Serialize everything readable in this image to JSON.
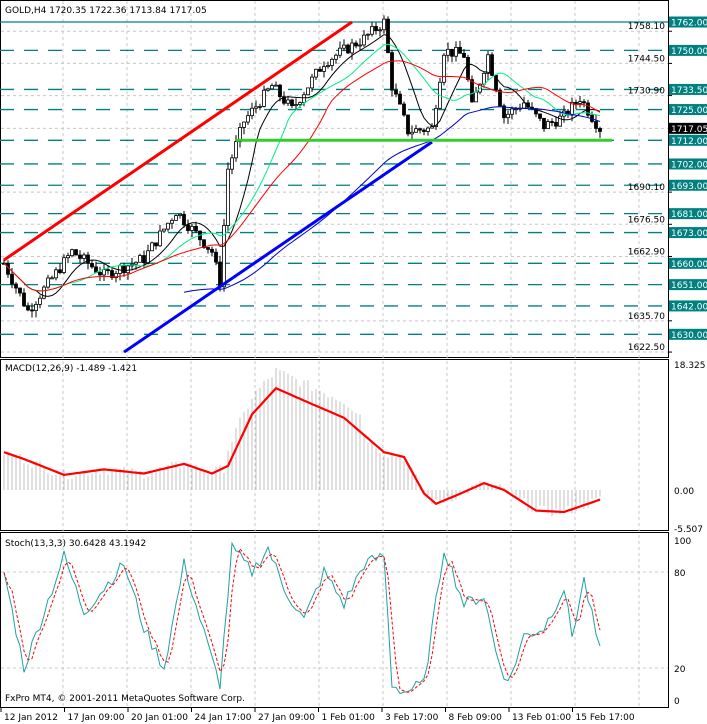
{
  "header": {
    "symbol": "GOLD,H4",
    "ohlc": "1720.35 1722.36 1713.84 1717.05"
  },
  "footer": {
    "copyright": "FxPro MT4, © 2001-2011 MetaQuotes Software Corp."
  },
  "colors": {
    "up": "#000000",
    "bg": "#ffffff",
    "level": "#008080",
    "trend_up": "#ff0000",
    "trend_support": "#0000ff",
    "support": "#33cc33",
    "ma_fast": "#000000",
    "ma_mid": "#00ee88",
    "ma_slow": "#ff0000",
    "ma_long": "#0000cc",
    "macd": "#ff0000",
    "hist": "#c0c0c0",
    "stoch_main": "#20a0a0",
    "stoch_signal": "#ff0000"
  },
  "chart_data": [
    {
      "type": "candlestick",
      "title": "GOLD,H4",
      "ylim": [
        1622.5,
        1762
      ],
      "price_ticks": [
        "1758.10",
        "1744.50",
        "1730.90",
        "1690.10",
        "1676.50",
        "1662.90",
        "1635.70",
        "1622.50"
      ],
      "current_price": "1717.05",
      "levels": [
        "1762.00",
        "1750.00",
        "1733.50",
        "1725.00",
        "1712.00",
        "1702.00",
        "1693.00",
        "1681.00",
        "1673.00",
        "1660.00",
        "1651.00",
        "1642.00",
        "1630.00"
      ],
      "close_path": [
        [
          0,
          1660
        ],
        [
          6,
          1640
        ],
        [
          17,
          1665
        ],
        [
          25,
          1655
        ],
        [
          35,
          1662
        ],
        [
          43,
          1682
        ],
        [
          52,
          1665
        ],
        [
          54,
          1652
        ],
        [
          56,
          1700
        ],
        [
          60,
          1720
        ],
        [
          67,
          1735
        ],
        [
          72,
          1725
        ],
        [
          80,
          1745
        ],
        [
          90,
          1755
        ],
        [
          95,
          1762
        ],
        [
          97,
          1735
        ],
        [
          101,
          1716
        ],
        [
          107,
          1717
        ],
        [
          110,
          1750
        ],
        [
          115,
          1748
        ],
        [
          117,
          1726
        ],
        [
          121,
          1748
        ],
        [
          125,
          1722
        ],
        [
          130,
          1728
        ],
        [
          135,
          1718
        ],
        [
          140,
          1722
        ],
        [
          144,
          1730
        ],
        [
          147,
          1722
        ],
        [
          149,
          1717
        ]
      ],
      "trendlines": [
        {
          "name": "rising-resistance",
          "from": [
            0,
            1661.4
          ],
          "to": [
            87,
            1762
          ]
        },
        {
          "name": "rising-support",
          "from": [
            30,
            1622.5
          ],
          "to": [
            107,
            1711.3
          ]
        },
        {
          "name": "horizontal-support",
          "from": [
            58,
            1712
          ],
          "to": [
            152,
            1712
          ]
        }
      ],
      "x_ticks": [
        "12 Jan 2012",
        "17 Jan 09:00",
        "20 Jan 01:00",
        "24 Jan 17:00",
        "27 Jan 09:00",
        "1 Feb 01:00",
        "3 Feb 17:00",
        "8 Feb 09:00",
        "13 Feb 01:00",
        "15 Feb 17:00"
      ]
    },
    {
      "type": "line",
      "title": "MACD(12,26,9) -1.489 -1.421",
      "ylim": [
        -5.507,
        18.325
      ],
      "ticks": [
        "18.325",
        "0.00",
        "-5.507"
      ],
      "signal_path": [
        [
          0,
          5.5
        ],
        [
          5,
          4.5
        ],
        [
          15,
          2.2
        ],
        [
          25,
          3
        ],
        [
          35,
          2.4
        ],
        [
          45,
          3.8
        ],
        [
          52,
          2.4
        ],
        [
          56,
          3.5
        ],
        [
          62,
          11
        ],
        [
          68,
          14.8
        ],
        [
          75,
          13
        ],
        [
          85,
          10.5
        ],
        [
          95,
          5.5
        ],
        [
          100,
          4.8
        ],
        [
          105,
          -0.5
        ],
        [
          108,
          -2
        ],
        [
          113,
          -0.8
        ],
        [
          120,
          1
        ],
        [
          125,
          0
        ],
        [
          133,
          -3
        ],
        [
          140,
          -3.2
        ],
        [
          145,
          -2.2
        ],
        [
          149,
          -1.4
        ]
      ]
    },
    {
      "type": "line",
      "title": "Stoch(13,3,3) 30.6428 43.1942",
      "ylim": [
        0,
        100
      ],
      "ticks": [
        "100",
        "80",
        "20",
        "0"
      ],
      "main_path": [
        [
          0,
          80
        ],
        [
          5,
          20
        ],
        [
          15,
          90
        ],
        [
          20,
          55
        ],
        [
          25,
          70
        ],
        [
          30,
          85
        ],
        [
          35,
          45
        ],
        [
          40,
          20
        ],
        [
          45,
          85
        ],
        [
          52,
          25
        ],
        [
          54,
          10
        ],
        [
          57,
          95
        ],
        [
          62,
          80
        ],
        [
          66,
          95
        ],
        [
          70,
          70
        ],
        [
          75,
          50
        ],
        [
          80,
          80
        ],
        [
          85,
          60
        ],
        [
          90,
          85
        ],
        [
          95,
          90
        ],
        [
          97,
          10
        ],
        [
          100,
          5
        ],
        [
          105,
          10
        ],
        [
          110,
          95
        ],
        [
          115,
          60
        ],
        [
          120,
          65
        ],
        [
          123,
          30
        ],
        [
          126,
          10
        ],
        [
          130,
          40
        ],
        [
          135,
          45
        ],
        [
          140,
          70
        ],
        [
          142,
          40
        ],
        [
          145,
          75
        ],
        [
          149,
          30
        ]
      ]
    }
  ]
}
